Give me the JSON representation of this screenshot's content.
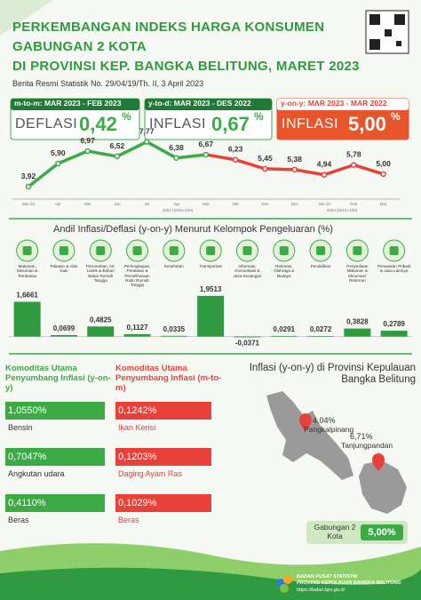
{
  "header": {
    "title_lines": [
      "PERKEMBANGAN INDEKS HARGA KONSUMEN",
      "GABUNGAN 2 KOTA",
      "DI PROVINSI KEP. BANGKA BELITUNG, MARET 2023"
    ],
    "subtitle": "Berita Resmi Statistik No. 29/04/19/Th. II, 3 April 2023"
  },
  "summary": [
    {
      "label": "m-to-m: MAR 2023 - FEB 2023",
      "kind": "DEFLASI",
      "value": "0,42",
      "unit": "%"
    },
    {
      "label": "y-to-d: MAR 2023 - DES 2022",
      "kind": "INFLASI",
      "value": "0,67",
      "unit": "%"
    },
    {
      "label": "y-on-y: MAR 2023 - MAR 2022",
      "kind": "INFLASI",
      "value": "5,00",
      "unit": "%"
    }
  ],
  "chart_data": [
    {
      "type": "line",
      "categories": [
        "Mar 22",
        "Apr",
        "Mei",
        "Jun",
        "Jul",
        "Agt",
        "Sep",
        "Okt",
        "Nov",
        "Des",
        "Jan 23",
        "Feb",
        "Mar"
      ],
      "values": [
        3.92,
        5.9,
        6.97,
        6.52,
        7.77,
        6.38,
        6.67,
        6.23,
        5.45,
        5.38,
        4.94,
        5.78,
        5.0
      ],
      "value_labels": [
        "3,92",
        "5,90",
        "6,97",
        "6,52",
        "7,77",
        "6,38",
        "6,67",
        "6,23",
        "5,45",
        "5,38",
        "4,94",
        "5,78",
        "5,00"
      ],
      "colors": [
        "#3cab46",
        "#3cab46",
        "#3cab46",
        "#3cab46",
        "#3cab46",
        "#3cab46",
        "#3cab46",
        "#e8413a",
        "#e8413a",
        "#e8413a",
        "#e8413a",
        "#e8413a",
        "#e8413a"
      ],
      "ylim": [
        3,
        8.5
      ],
      "period_labels": [
        "2022 (2018=100)",
        "2023 (2018=100)"
      ]
    },
    {
      "type": "bar",
      "title": "Andil Inflasi/Deflasi (y-on-y) Menurut Kelompok Pengeluaran (%)",
      "categories": [
        "Makanan, Minuman & Tembakau",
        "Pakaian & Alas Kaki",
        "Perumahan, Air, Listrik & Bahan Bakar Rumah Tangga",
        "Perlengkapan, Peralatan & Pemeliharaan Rutin Rumah Tangga",
        "Kesehatan",
        "Transportasi",
        "Informasi, Komunikasi & Jasa Keuangan",
        "Rekreasi, Olahraga & Budaya",
        "Pendidikan",
        "Penyediaan Makanan & Minuman/ Restoran",
        "Perawatan Pribadi & Jasa Lainnya"
      ],
      "values": [
        1.6661,
        0.0699,
        0.4825,
        0.1127,
        0.0335,
        1.9513,
        -0.0371,
        0.0291,
        0.0272,
        0.3828,
        0.2789
      ],
      "value_labels": [
        "1,6661",
        "0,0699",
        "0,4825",
        "0,1127",
        "0,0335",
        "1,9513",
        "-0,0371",
        "0,0291",
        "0,0272",
        "0,3828",
        "0,2789"
      ],
      "color": "#2f9a3f",
      "ylim": [
        -0.7,
        2.5
      ]
    }
  ],
  "commodities": [
    {
      "title": "Komoditas Utama Penyumbang Inflasi (y-on-y)",
      "color": "#3cab46",
      "items": [
        {
          "value": "1,0550%",
          "name": "Bensin"
        },
        {
          "value": "0,7047%",
          "name": "Angkutan udara"
        },
        {
          "value": "0,4110%",
          "name": "Beras"
        }
      ]
    },
    {
      "title": "Komoditas Utama Penyumbang Inflasi (m-to-m)",
      "color": "#e8413a",
      "items": [
        {
          "value": "0,1242%",
          "name": "Ikan Kerisi"
        },
        {
          "value": "0,1203%",
          "name": "Daging Ayam Ras"
        },
        {
          "value": "0,1029%",
          "name": "Beras"
        }
      ]
    }
  ],
  "map": {
    "title": "Inflasi (y-on-y) di Provinsi Kepulauan Bangka Belitung",
    "cities": [
      {
        "value": "4,04%",
        "name": "Pangkalpinang"
      },
      {
        "value": "6,71%",
        "name": "Tanjungpandan"
      }
    ],
    "combined": {
      "label": "Gabungan 2 Kota",
      "value": "5,00%"
    }
  },
  "footer": {
    "org": "BADAN PUSAT STATISTIK",
    "region": "PROVINSI KEPULAUAN BANGKA BELITUNG",
    "url": "https://babel.bps.go.id"
  }
}
